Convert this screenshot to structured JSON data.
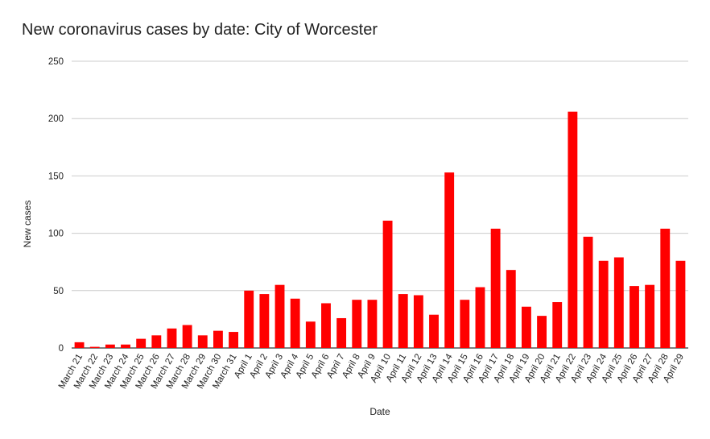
{
  "chart_data": {
    "type": "bar",
    "title": "New coronavirus cases by date: City of Worcester",
    "xlabel": "Date",
    "ylabel": "New cases",
    "ylim": [
      0,
      250
    ],
    "yticks": [
      0,
      50,
      100,
      150,
      200,
      250
    ],
    "grid": true,
    "bar_color": "#ff0000",
    "categories": [
      "March 21",
      "March 22",
      "March 23",
      "March 24",
      "March 25",
      "March 26",
      "March 27",
      "March 28",
      "March 29",
      "March 30",
      "March 31",
      "April 1",
      "April 2",
      "April 3",
      "April 4",
      "April 5",
      "April 6",
      "April 7",
      "April 8",
      "April 9",
      "April 10",
      "April 11",
      "April 12",
      "April 13",
      "April 14",
      "April 15",
      "April 16",
      "April 17",
      "April 18",
      "April 19",
      "April 20",
      "April 21",
      "April 22",
      "April 23",
      "April 24",
      "April 25",
      "April 26",
      "April 27",
      "April 28",
      "April 29"
    ],
    "values": [
      5,
      1,
      3,
      3,
      8,
      11,
      17,
      20,
      11,
      15,
      14,
      50,
      47,
      55,
      43,
      23,
      39,
      26,
      42,
      42,
      111,
      47,
      46,
      29,
      153,
      42,
      53,
      104,
      68,
      36,
      28,
      40,
      206,
      97,
      76,
      79,
      54,
      55,
      104,
      76
    ]
  }
}
